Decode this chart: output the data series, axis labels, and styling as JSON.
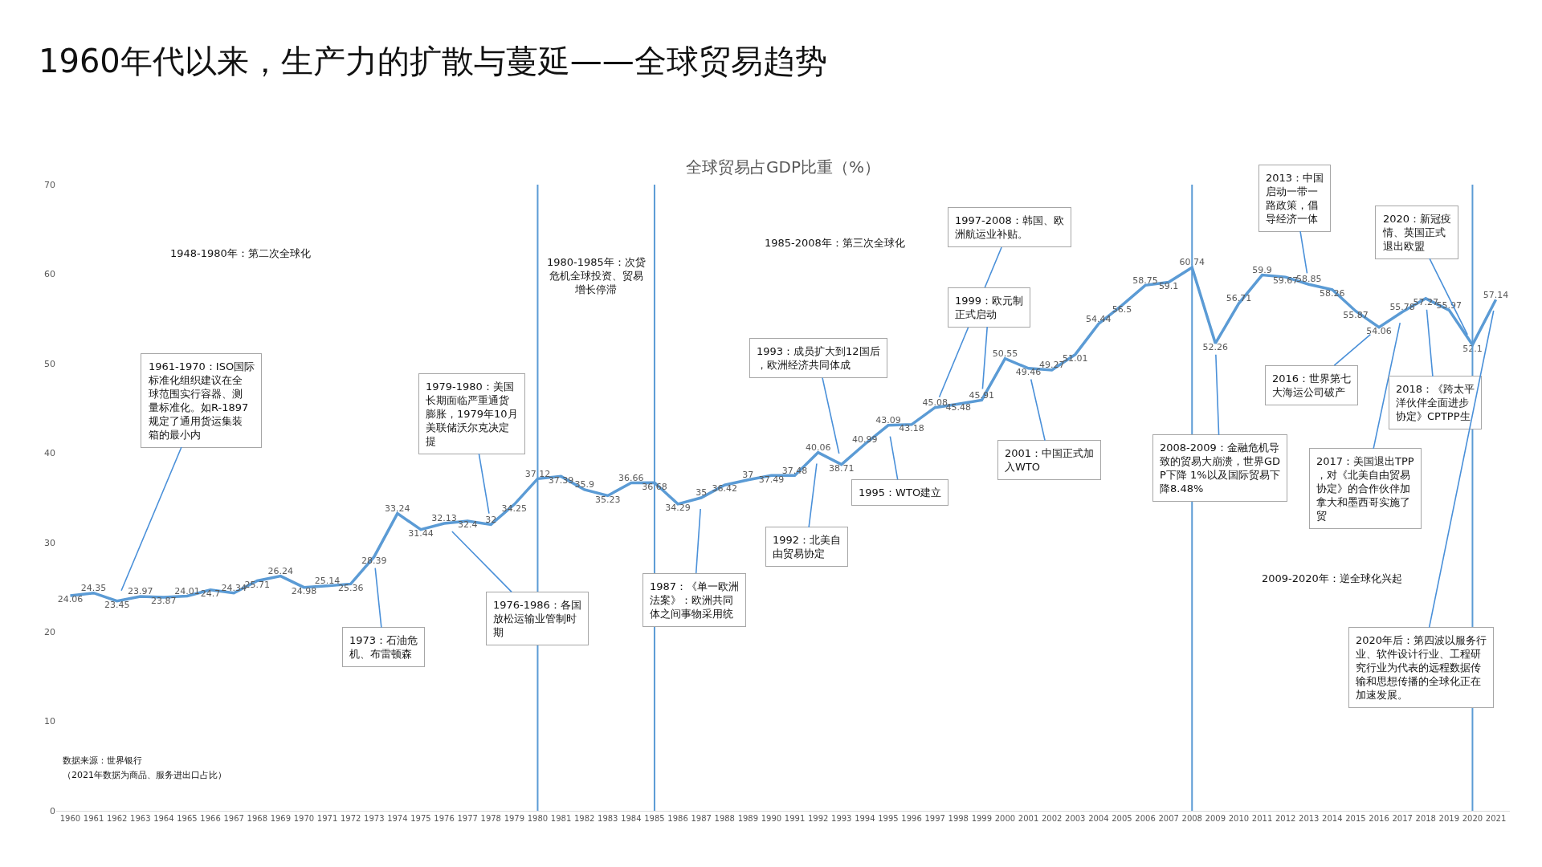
{
  "chart_data": {
    "type": "line",
    "title": "1960年代以来，生产力的扩散与蔓延——全球贸易趋势",
    "subtitle": "全球贸易占GDP比重（%）",
    "x": [
      1960,
      1961,
      1962,
      1963,
      1964,
      1965,
      1966,
      1967,
      1968,
      1969,
      1970,
      1971,
      1972,
      1973,
      1974,
      1975,
      1976,
      1977,
      1978,
      1979,
      1980,
      1981,
      1982,
      1983,
      1984,
      1985,
      1986,
      1987,
      1988,
      1989,
      1990,
      1991,
      1992,
      1993,
      1994,
      1995,
      1996,
      1997,
      1998,
      1999,
      2000,
      2001,
      2002,
      2003,
      2004,
      2005,
      2006,
      2007,
      2008,
      2009,
      2010,
      2011,
      2012,
      2013,
      2014,
      2015,
      2016,
      2017,
      2018,
      2019,
      2020,
      2021
    ],
    "series": [
      {
        "color": "#5b9bd5",
        "values": [
          24.06,
          24.35,
          23.45,
          23.97,
          23.87,
          24.01,
          24.7,
          24.34,
          25.71,
          26.24,
          24.98,
          25.14,
          25.36,
          28.39,
          33.24,
          31.44,
          32.13,
          32.4,
          32,
          34.25,
          37.12,
          37.39,
          35.9,
          35.23,
          36.66,
          36.68,
          34.29,
          35,
          36.42,
          37,
          37.49,
          37.48,
          40.06,
          38.71,
          40.99,
          43.09,
          43.18,
          45.08,
          45.48,
          45.91,
          50.55,
          49.46,
          49.27,
          51.01,
          54.44,
          56.5,
          58.75,
          59.1,
          60.74,
          52.26,
          56.71,
          59.9,
          59.67,
          58.85,
          58.26,
          55.87,
          54.06,
          55.78,
          57.27,
          55.97,
          52.1,
          57.14
        ]
      }
    ],
    "data_labels": true,
    "xlim": [
      1959.4,
      2021.6
    ],
    "xticks": [
      1960,
      1961,
      1962,
      1963,
      1964,
      1965,
      1966,
      1967,
      1968,
      1969,
      1970,
      1971,
      1972,
      1973,
      1974,
      1975,
      1976,
      1977,
      1978,
      1979,
      1980,
      1981,
      1982,
      1983,
      1984,
      1985,
      1986,
      1987,
      1988,
      1989,
      1990,
      1991,
      1992,
      1993,
      1994,
      1995,
      1996,
      1997,
      1998,
      1999,
      2000,
      2001,
      2002,
      2003,
      2004,
      2005,
      2006,
      2007,
      2008,
      2009,
      2010,
      2011,
      2012,
      2013,
      2014,
      2015,
      2016,
      2017,
      2018,
      2019,
      2020,
      2021
    ],
    "ylim": [
      0,
      70
    ],
    "yticks": [
      0,
      10,
      20,
      30,
      40,
      50,
      60,
      70
    ],
    "grid": false,
    "marker": "none",
    "line_style": "solid",
    "ref_lines": [
      {
        "axis": "x",
        "value": 1980,
        "color": "#5b9bd5"
      },
      {
        "axis": "x",
        "value": 1985,
        "color": "#5b9bd5"
      },
      {
        "axis": "x",
        "value": 2008,
        "color": "#5b9bd5"
      },
      {
        "axis": "x",
        "value": 2020,
        "color": "#5b9bd5"
      }
    ],
    "annotations": [
      "1948-1980年：第二次全球化",
      "1980-1985年：次贷危机全球投资、贸易增长停滞",
      "1985-2008年：第三次全球化",
      "2009-2020年：逆全球化兴起",
      {
        "text": "1961-1970：ISO国际标准化组织建议在全球范围实行容器、测量标准化。如R-1897规定了通用货运集装箱的最小内",
        "x": 1962,
        "y": 23.45
      },
      {
        "text": "1973：石油危机、布雷顿森",
        "x": 1973,
        "y": 28.39
      },
      {
        "text": "1976-1986：各国放松运输业管制时期",
        "x": 1976,
        "y": 32.13
      },
      {
        "text": "1979-1980：美国长期面临严重通货膨胀，1979年10月美联储沃尔克决定提",
        "x": 1978,
        "y": 32
      },
      {
        "text": "1987：《单一欧洲法案》：欧洲共同体之间事物采用统",
        "x": 1987,
        "y": 35
      },
      {
        "text": "1992：北美自由贸易协定",
        "x": 1992,
        "y": 40.06
      },
      {
        "text": "1993：成员扩大到12国后，欧洲经济共同体成",
        "x": 1993,
        "y": 38.71
      },
      {
        "text": "1995：WTO建立",
        "x": 1995,
        "y": 43.09
      },
      {
        "text": "1997-2008：韩国、欧洲航运业补贴。",
        "x": 1997,
        "y": 45.08
      },
      {
        "text": "1999：欧元制正式启动",
        "x": 1999,
        "y": 45.91
      },
      {
        "text": "2001：中国正式加入WTO",
        "x": 2001,
        "y": 49.46
      },
      {
        "text": "2008-2009：金融危机导致的贸易大崩溃，世界GDP下降 1%以及国际贸易下降8.48%",
        "x": 2009,
        "y": 52.26
      },
      {
        "text": "2013：中国启动一带一路政策，倡导经济一体",
        "x": 2013,
        "y": 58.85
      },
      {
        "text": "2016：世界第七大海运公司破产",
        "x": 2016,
        "y": 54.06
      },
      {
        "text": "2017：美国退出TPP，对《北美自由贸易协定》的合作伙伴加拿大和墨西哥实施了贸",
        "x": 2017,
        "y": 55.78
      },
      {
        "text": "2018：《跨太平洋伙伴全面进步协定》CPTPP生",
        "x": 2018,
        "y": 57.27
      },
      {
        "text": "2020：新冠疫情、英国正式退出欧盟",
        "x": 2020,
        "y": 52.1
      },
      {
        "text": "2020年后：第四波以服务行业、软件设计行业、工程研究行业为代表的远程数据传输和思想传播的全球化正在加速发展。",
        "x": 2021,
        "y": 57.14
      },
      "数据来源：世界银行",
      "（2021年数据为商品、服务进出口占比）"
    ]
  }
}
